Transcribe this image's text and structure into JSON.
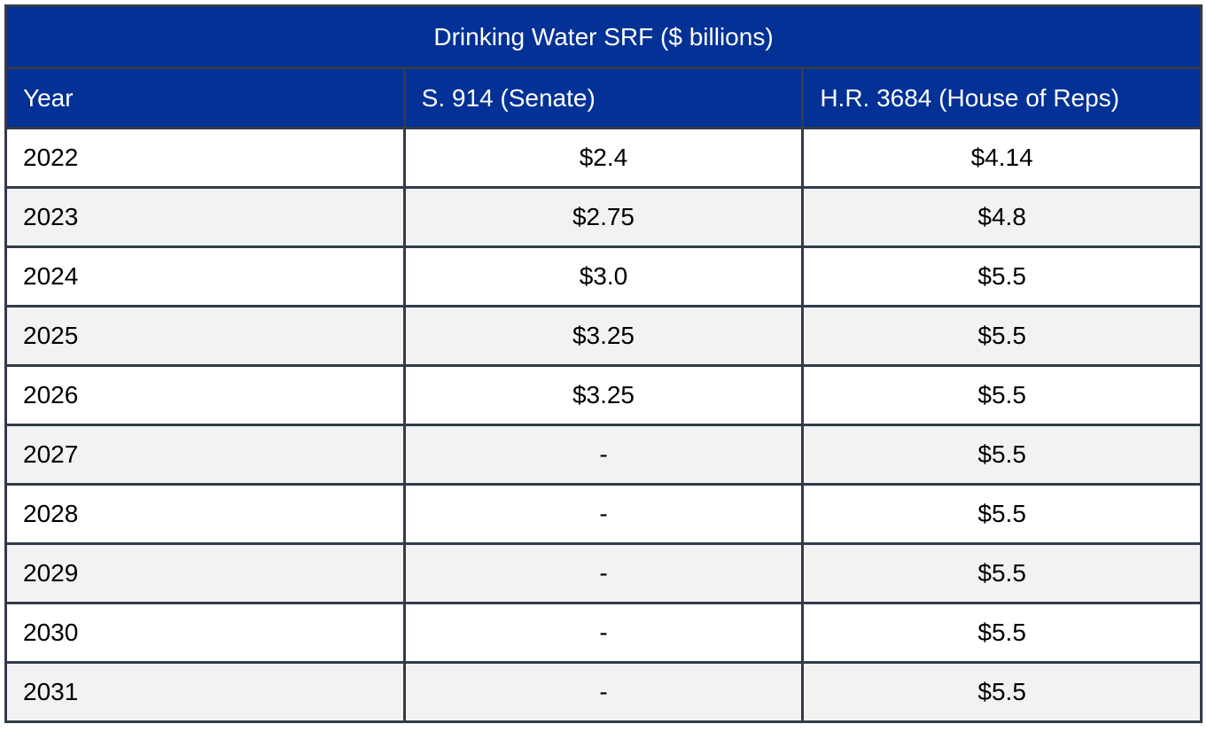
{
  "title": "Drinking Water SRF ($ billions)",
  "columns": [
    "Year",
    "S. 914 (Senate)",
    "H.R. 3684 (House of Reps)"
  ],
  "chart_data": {
    "type": "table",
    "title": "Drinking Water SRF ($ billions)",
    "units": "$ billions",
    "columns": [
      "Year",
      "S. 914 (Senate)",
      "H.R. 3684 (House of Reps)"
    ],
    "rows": [
      [
        "2022",
        "$2.4",
        "$4.14"
      ],
      [
        "2023",
        "$2.75",
        "$4.8"
      ],
      [
        "2024",
        "$3.0",
        "$5.5"
      ],
      [
        "2025",
        "$3.25",
        "$5.5"
      ],
      [
        "2026",
        "$3.25",
        "$5.5"
      ],
      [
        "2027",
        "-",
        "$5.5"
      ],
      [
        "2028",
        "-",
        "$5.5"
      ],
      [
        "2029",
        "-",
        "$5.5"
      ],
      [
        "2030",
        "-",
        "$5.5"
      ],
      [
        "2031",
        "-",
        "$5.5"
      ]
    ],
    "series": [
      {
        "name": "S. 914 (Senate)",
        "values": [
          2.4,
          2.75,
          3.0,
          3.25,
          3.25,
          null,
          null,
          null,
          null,
          null
        ]
      },
      {
        "name": "H.R. 3684 (House of Reps)",
        "values": [
          4.14,
          4.8,
          5.5,
          5.5,
          5.5,
          5.5,
          5.5,
          5.5,
          5.5,
          5.5
        ]
      }
    ],
    "categories": [
      "2022",
      "2023",
      "2024",
      "2025",
      "2026",
      "2027",
      "2028",
      "2029",
      "2030",
      "2031"
    ]
  },
  "colors": {
    "header_background": "#033196",
    "header_text": "#ffffff",
    "border": "#333b4b",
    "row_background": "#ffffff",
    "row_alt_background": "#f2f2f2",
    "body_text": "#000000"
  }
}
